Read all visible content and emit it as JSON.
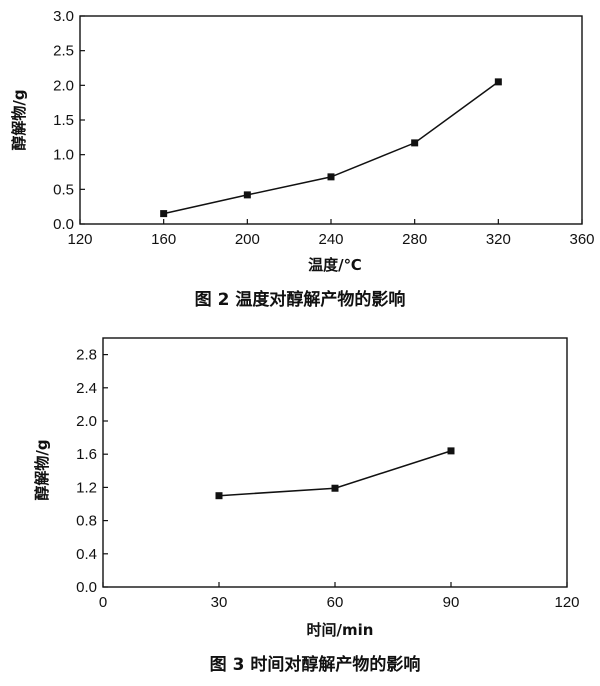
{
  "chart_data": [
    {
      "type": "line",
      "x": [
        160,
        200,
        240,
        280,
        320
      ],
      "series": [
        {
          "values": [
            0.15,
            0.42,
            0.68,
            1.17,
            2.05
          ]
        }
      ],
      "xlabel": "温度/℃",
      "ylabel": "醇解物/g",
      "xlim": [
        120,
        360
      ],
      "ylim": [
        0.0,
        3.0
      ],
      "xticks": [
        "120",
        "160",
        "200",
        "240",
        "280",
        "320",
        "360"
      ],
      "yticks": [
        "0.0",
        "0.5",
        "1.0",
        "1.5",
        "2.0",
        "2.5",
        "3.0"
      ],
      "caption": "图 2 温度对醇解产物的影响",
      "grid": false
    },
    {
      "type": "line",
      "x": [
        30,
        60,
        90
      ],
      "series": [
        {
          "values": [
            1.1,
            1.19,
            1.64
          ]
        }
      ],
      "xlabel": "时间/min",
      "ylabel": "醇解物/g",
      "xlim": [
        0,
        120
      ],
      "ylim": [
        0.0,
        3.0
      ],
      "xticks": [
        "0",
        "30",
        "60",
        "90",
        "120"
      ],
      "yticks": [
        "0.0",
        "0.4",
        "0.8",
        "1.2",
        "1.6",
        "2.0",
        "2.4",
        "2.8"
      ],
      "caption": "图 3 时间对醇解产物的影响",
      "grid": false
    }
  ]
}
